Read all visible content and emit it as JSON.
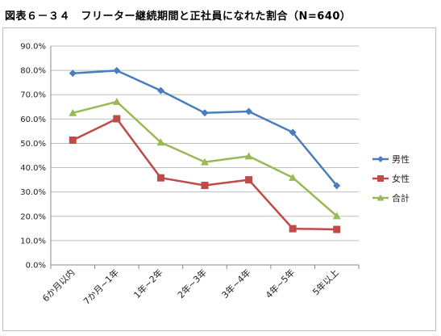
{
  "title": "図表６－３４　フリーター継続期間と正社員になれた割合（N=640）",
  "chart_data": {
    "type": "line",
    "categories": [
      "6か月以内",
      "7か月~1年",
      "1年~2年",
      "2年~3年",
      "3年~4年",
      "4年~5年",
      "5年以上"
    ],
    "ylim": [
      0,
      90
    ],
    "yticks": [
      "0.0%",
      "10.0%",
      "20.0%",
      "30.0%",
      "40.0%",
      "50.0%",
      "60.0%",
      "70.0%",
      "80.0%",
      "90.0%"
    ],
    "grid": true,
    "legend_position": "right",
    "series": [
      {
        "name": "男性",
        "color": "#4a7ebb",
        "marker": "diamond",
        "values": [
          78.8,
          79.9,
          71.7,
          62.5,
          63.1,
          54.5,
          32.6
        ]
      },
      {
        "name": "女性",
        "color": "#be4b48",
        "marker": "square",
        "values": [
          51.3,
          60.1,
          35.8,
          32.7,
          35.0,
          14.9,
          14.6
        ]
      },
      {
        "name": "合計",
        "color": "#98b954",
        "marker": "triangle",
        "values": [
          62.5,
          67.1,
          50.4,
          42.3,
          44.7,
          35.9,
          20.1
        ]
      }
    ]
  }
}
